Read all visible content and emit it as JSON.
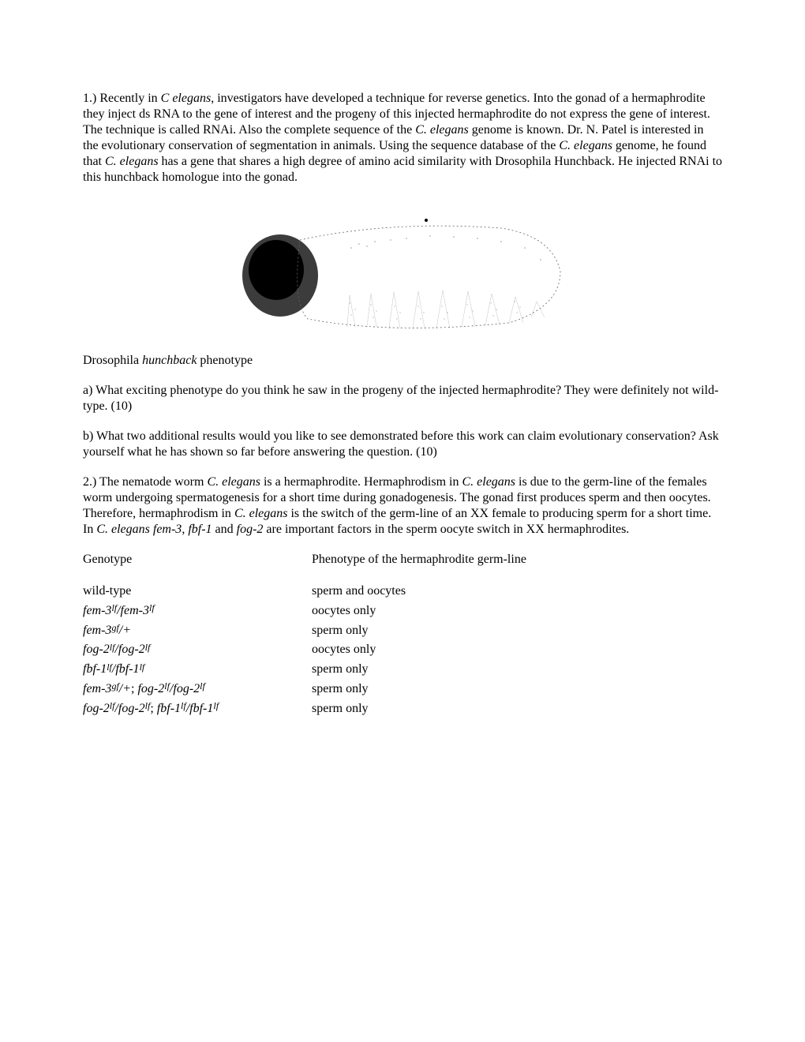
{
  "q1": {
    "intro": "1.)  Recently in ",
    "species1": "C elegans",
    "text1": ", investigators have developed a technique for reverse genetics.  Into the gonad of a hermaphrodite they inject ds RNA to the gene of interest and the progeny of this injected hermaphrodite do not express the gene of interest.  The technique is called RNAi.  Also the complete sequence of the ",
    "species2": "C. elegans",
    "text2": " genome is known.  Dr. N. Patel is interested in the evolutionary conservation of segmentation in animals.  Using the sequence database of the ",
    "species3": "C. elegans",
    "text3": " genome, he found that ",
    "species4": "C. elegans",
    "text4": " has a gene that shares a high degree of amino acid similarity with Drosophila Hunchback.  He injected RNAi to this hunchback homologue into the gonad."
  },
  "caption": {
    "prefix": "Drosophila ",
    "gene": "hunchback",
    "suffix": " phenotype"
  },
  "q1a": "a)  What exciting phenotype do you think he saw in the progeny of the injected hermaphrodite?  They were definitely not wild-type.  (10)",
  "q1b": "b)  What two additional results would you like to see demonstrated before this work can claim evolutionary conservation?  Ask yourself what he has shown so far before answering the question.  (10)",
  "q2": {
    "intro": "2.)  The nematode worm ",
    "s1": "C. elegans",
    "t1": " is a hermaphrodite.  Hermaphrodism in ",
    "s2": "C. elegans",
    "t2": " is due to the germ-line of the females worm undergoing spermatogenesis for a short time during gonadogenesis.  The gonad first produces sperm and then oocytes.  Therefore, hermaphrodism in ",
    "s3": "C. elegans",
    "t3": " is the switch of the germ-line of an XX female to producing sperm for a short time.  In ",
    "s4": "C. elegans fem-3",
    "t4": ", ",
    "s5": "fbf-1",
    "t5": " and ",
    "s6": "fog-2",
    "t6": " are important factors in the sperm oocyte switch in XX hermaphrodites."
  },
  "table": {
    "header_left": "Genotype",
    "header_right": "Phenotype of the hermaphrodite germ-line",
    "rows": [
      {
        "geno": "wild-type",
        "pheno": "sperm and oocytes"
      },
      {
        "geno": "fem-3lf/fem-3lf",
        "pheno": "oocytes only"
      },
      {
        "geno": "fem-3gf/+",
        "pheno": "sperm only"
      },
      {
        "geno": "fog-2lf/fog-2lf",
        "pheno": "oocytes only"
      },
      {
        "geno": "fbf-1lf/fbf-1lf",
        "pheno": "sperm only"
      },
      {
        "geno": "fem-3gf/+; fog-2lf/fog-2lf",
        "pheno": "sperm only"
      },
      {
        "geno": "fog-2lf/fog-2lf; fbf-1lf/fbf-1lf",
        "pheno": "sperm only"
      }
    ]
  },
  "image": {
    "bg_color": "#ffffff",
    "outline_color": "#333333",
    "dark_region_color": "#1a1a1a",
    "stipple_color": "#555555"
  }
}
